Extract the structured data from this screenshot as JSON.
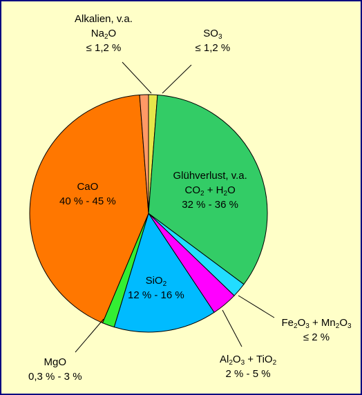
{
  "chart_data": {
    "type": "pie",
    "title": "",
    "start_angle_deg": 0,
    "direction": "clockwise",
    "slices": [
      {
        "key": "so3",
        "lines": [
          [
            "SO",
            "3"
          ],
          [
            "≤ 1,2 %"
          ]
        ],
        "value": 1.2,
        "color": "#e6e64a"
      },
      {
        "key": "gluehverlust",
        "lines": [
          [
            "Glühverlust, v.a."
          ],
          [
            "CO",
            "2",
            " + H",
            "2",
            "O"
          ],
          [
            "32 % - 36 %"
          ]
        ],
        "value": 34.0,
        "color": "#33cc66"
      },
      {
        "key": "fe2o3-mn2o3",
        "lines": [
          [
            "Fe",
            "2",
            "O",
            "3",
            " + Mn",
            "2",
            "O",
            "3"
          ],
          [
            "≤ 2 %"
          ]
        ],
        "value": 2.0,
        "color": "#22ddff"
      },
      {
        "key": "al2o3-tio2",
        "lines": [
          [
            "Al",
            "2",
            "O",
            "3",
            " + TiO",
            "2"
          ],
          [
            "2 % - 5 %"
          ]
        ],
        "value": 3.5,
        "color": "#ff00ff"
      },
      {
        "key": "sio2",
        "lines": [
          [
            "SiO",
            "2"
          ],
          [
            "12 % - 16 %"
          ]
        ],
        "value": 14.0,
        "color": "#00bbff"
      },
      {
        "key": "mgo",
        "lines": [
          [
            "MgO"
          ],
          [
            "0,3 % - 3 %"
          ]
        ],
        "value": 1.65,
        "color": "#33ee33"
      },
      {
        "key": "cao",
        "lines": [
          [
            "CaO"
          ],
          [
            "40 % - 45 %"
          ]
        ],
        "value": 42.5,
        "color": "#ff7700"
      },
      {
        "key": "alkalien",
        "lines": [
          [
            "Alkalien, v.a."
          ],
          [
            "Na",
            "2",
            "O"
          ],
          [
            "≤ 1,2 %"
          ]
        ],
        "value": 1.2,
        "color": "#ff9966"
      }
    ]
  }
}
